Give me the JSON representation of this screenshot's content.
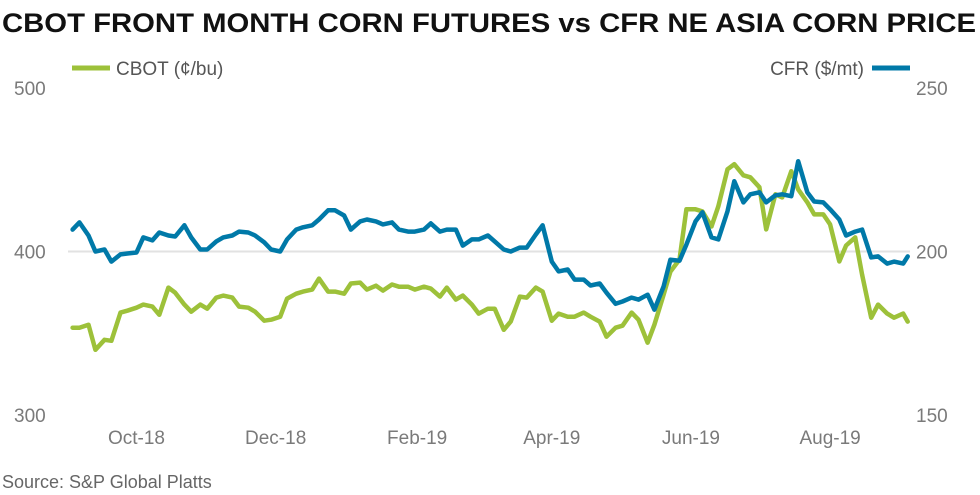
{
  "chart_data": {
    "type": "line",
    "title": "CBOT FRONT MONTH CORN FUTURES vs CFR NE ASIA CORN PRICE",
    "source": "Source: S&P Global Platts",
    "x_ticks": [
      "Oct-18",
      "Dec-18",
      "Feb-19",
      "Apr-19",
      "Jun-19",
      "Aug-19"
    ],
    "x_tick_dates": [
      "2018-10-01",
      "2018-12-01",
      "2019-02-01",
      "2019-04-01",
      "2019-06-01",
      "2019-08-01"
    ],
    "xlim": [
      "2018-09-01",
      "2019-09-05"
    ],
    "y_left": {
      "lim": [
        300,
        500
      ],
      "ticks": [
        "300",
        "400",
        "500"
      ]
    },
    "y_right": {
      "lim": [
        150,
        250
      ],
      "ticks": [
        "150",
        "200",
        "250"
      ]
    },
    "grid": "horizontal line at 400 / 200 only",
    "legend_placement": "top",
    "x": [
      "2018-09-03",
      "2018-09-06",
      "2018-09-10",
      "2018-09-13",
      "2018-09-17",
      "2018-09-20",
      "2018-09-24",
      "2018-09-27",
      "2018-10-01",
      "2018-10-04",
      "2018-10-08",
      "2018-10-11",
      "2018-10-15",
      "2018-10-18",
      "2018-10-22",
      "2018-10-25",
      "2018-10-29",
      "2018-11-01",
      "2018-11-05",
      "2018-11-08",
      "2018-11-12",
      "2018-11-15",
      "2018-11-19",
      "2018-11-22",
      "2018-11-26",
      "2018-11-29",
      "2018-12-03",
      "2018-12-06",
      "2018-12-10",
      "2018-12-13",
      "2018-12-17",
      "2018-12-20",
      "2018-12-24",
      "2018-12-27",
      "2018-12-31",
      "2019-01-03",
      "2019-01-07",
      "2019-01-10",
      "2019-01-14",
      "2019-01-17",
      "2019-01-21",
      "2019-01-24",
      "2019-01-28",
      "2019-01-31",
      "2019-02-04",
      "2019-02-07",
      "2019-02-11",
      "2019-02-14",
      "2019-02-18",
      "2019-02-21",
      "2019-02-25",
      "2019-02-28",
      "2019-03-04",
      "2019-03-07",
      "2019-03-11",
      "2019-03-14",
      "2019-03-18",
      "2019-03-21",
      "2019-03-25",
      "2019-03-28",
      "2019-04-01",
      "2019-04-04",
      "2019-04-08",
      "2019-04-11",
      "2019-04-15",
      "2019-04-18",
      "2019-04-22",
      "2019-04-25",
      "2019-04-29",
      "2019-05-02",
      "2019-05-06",
      "2019-05-09",
      "2019-05-13",
      "2019-05-16",
      "2019-05-20",
      "2019-05-23",
      "2019-05-27",
      "2019-05-30",
      "2019-06-03",
      "2019-06-06",
      "2019-06-10",
      "2019-06-13",
      "2019-06-17",
      "2019-06-20",
      "2019-06-24",
      "2019-06-27",
      "2019-07-01",
      "2019-07-04",
      "2019-07-08",
      "2019-07-11",
      "2019-07-15",
      "2019-07-18",
      "2019-07-22",
      "2019-07-25",
      "2019-07-29",
      "2019-08-01",
      "2019-08-05",
      "2019-08-08",
      "2019-08-12",
      "2019-08-15",
      "2019-08-19",
      "2019-08-22",
      "2019-08-26",
      "2019-08-29",
      "2019-09-02",
      "2019-09-04"
    ],
    "series": [
      {
        "name": "CBOT (¢/bu)",
        "axis": "left",
        "color": "#9dc13a",
        "values": [
          353.4,
          353.4,
          355.2,
          339.9,
          346.0,
          345.4,
          362.6,
          363.8,
          365.6,
          367.5,
          366.3,
          361.3,
          377.9,
          374.8,
          367.5,
          363.2,
          367.5,
          365.0,
          371.8,
          373.0,
          371.8,
          366.3,
          365.6,
          363.2,
          357.7,
          358.3,
          360.1,
          371.2,
          374.2,
          375.5,
          376.7,
          383.4,
          375.5,
          375.5,
          374.2,
          380.4,
          381.0,
          376.7,
          379.1,
          376.1,
          379.8,
          378.5,
          378.5,
          376.7,
          378.5,
          377.3,
          372.4,
          377.9,
          370.6,
          373.0,
          367.5,
          362.0,
          365.0,
          365.0,
          352.1,
          357.1,
          372.4,
          371.8,
          377.9,
          375.5,
          357.7,
          362.0,
          360.1,
          360.1,
          362.6,
          360.1,
          357.1,
          347.9,
          353.4,
          354.6,
          362.6,
          358.3,
          344.2,
          355.2,
          373.6,
          387.7,
          395.1,
          425.8,
          425.8,
          424.5,
          415.3,
          427.6,
          450.3,
          453.4,
          446.6,
          445.4,
          439.3,
          413.5,
          435.0,
          433.1,
          449.1,
          438.0,
          430.1,
          422.7,
          422.7,
          416.6,
          393.9,
          403.7,
          408.6,
          385.9,
          359.5,
          367.5,
          362.0,
          359.5,
          362.0,
          357.1
        ]
      },
      {
        "name": "CFR ($/mt)",
        "axis": "right",
        "color": "#0079a8",
        "values": [
          206.7,
          208.9,
          204.9,
          200.0,
          200.6,
          196.9,
          199.1,
          199.4,
          199.7,
          204.3,
          203.4,
          205.8,
          204.9,
          204.6,
          208.0,
          204.3,
          200.6,
          200.6,
          203.1,
          204.3,
          204.9,
          206.1,
          205.8,
          204.9,
          202.8,
          200.6,
          200.0,
          203.7,
          206.7,
          207.4,
          208.0,
          209.8,
          212.6,
          212.6,
          211.0,
          206.7,
          209.2,
          209.8,
          209.2,
          208.3,
          208.9,
          206.7,
          206.1,
          206.1,
          206.7,
          208.6,
          206.1,
          206.7,
          206.7,
          201.8,
          203.7,
          203.7,
          204.9,
          203.1,
          200.6,
          200.0,
          201.2,
          201.2,
          205.2,
          208.0,
          196.9,
          193.9,
          194.5,
          191.4,
          191.4,
          189.6,
          190.2,
          187.4,
          184.0,
          184.7,
          185.9,
          185.3,
          186.8,
          182.2,
          189.3,
          197.5,
          197.2,
          202.1,
          209.2,
          212.0,
          204.3,
          203.7,
          212.3,
          221.5,
          215.0,
          217.5,
          218.1,
          215.0,
          217.2,
          217.5,
          216.9,
          227.6,
          218.1,
          215.3,
          215.0,
          212.9,
          209.8,
          204.9,
          206.1,
          206.7,
          198.2,
          198.5,
          196.3,
          196.9,
          196.3,
          198.5
        ]
      }
    ]
  }
}
